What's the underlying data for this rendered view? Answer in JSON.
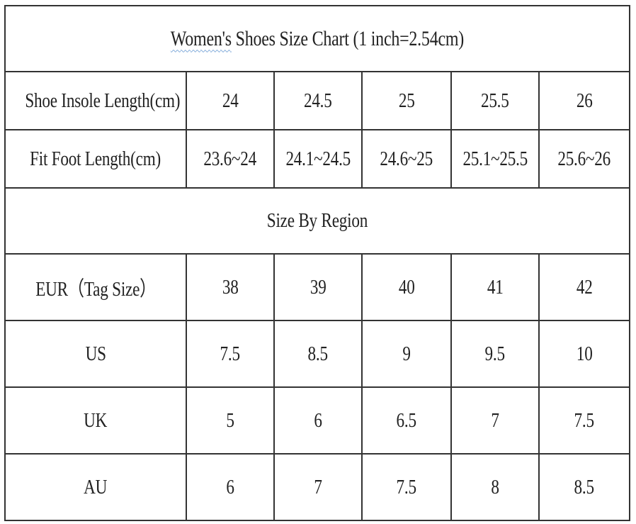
{
  "title": {
    "prefix": "Women's",
    "rest": " Shoes Size Chart (1 inch=2.54cm)"
  },
  "measurement_rows": [
    {
      "label": "Shoe Insole Length(cm)",
      "values": [
        "24",
        "24.5",
        "25",
        "25.5",
        "26"
      ]
    },
    {
      "label": "Fit Foot Length(cm)",
      "values": [
        "23.6~24",
        "24.1~24.5",
        "24.6~25",
        "25.1~25.5",
        "25.6~26"
      ]
    }
  ],
  "region_header": "Size By Region",
  "region_rows": [
    {
      "label": "EUR（Tag Size）",
      "values": [
        "38",
        "39",
        "40",
        "41",
        "42"
      ]
    },
    {
      "label": "US",
      "values": [
        "7.5",
        "8.5",
        "9",
        "9.5",
        "10"
      ]
    },
    {
      "label": "UK",
      "values": [
        "5",
        "6",
        "6.5",
        "7",
        "7.5"
      ]
    },
    {
      "label": "AU",
      "values": [
        "6",
        "7",
        "7.5",
        "8",
        "8.5"
      ]
    }
  ]
}
